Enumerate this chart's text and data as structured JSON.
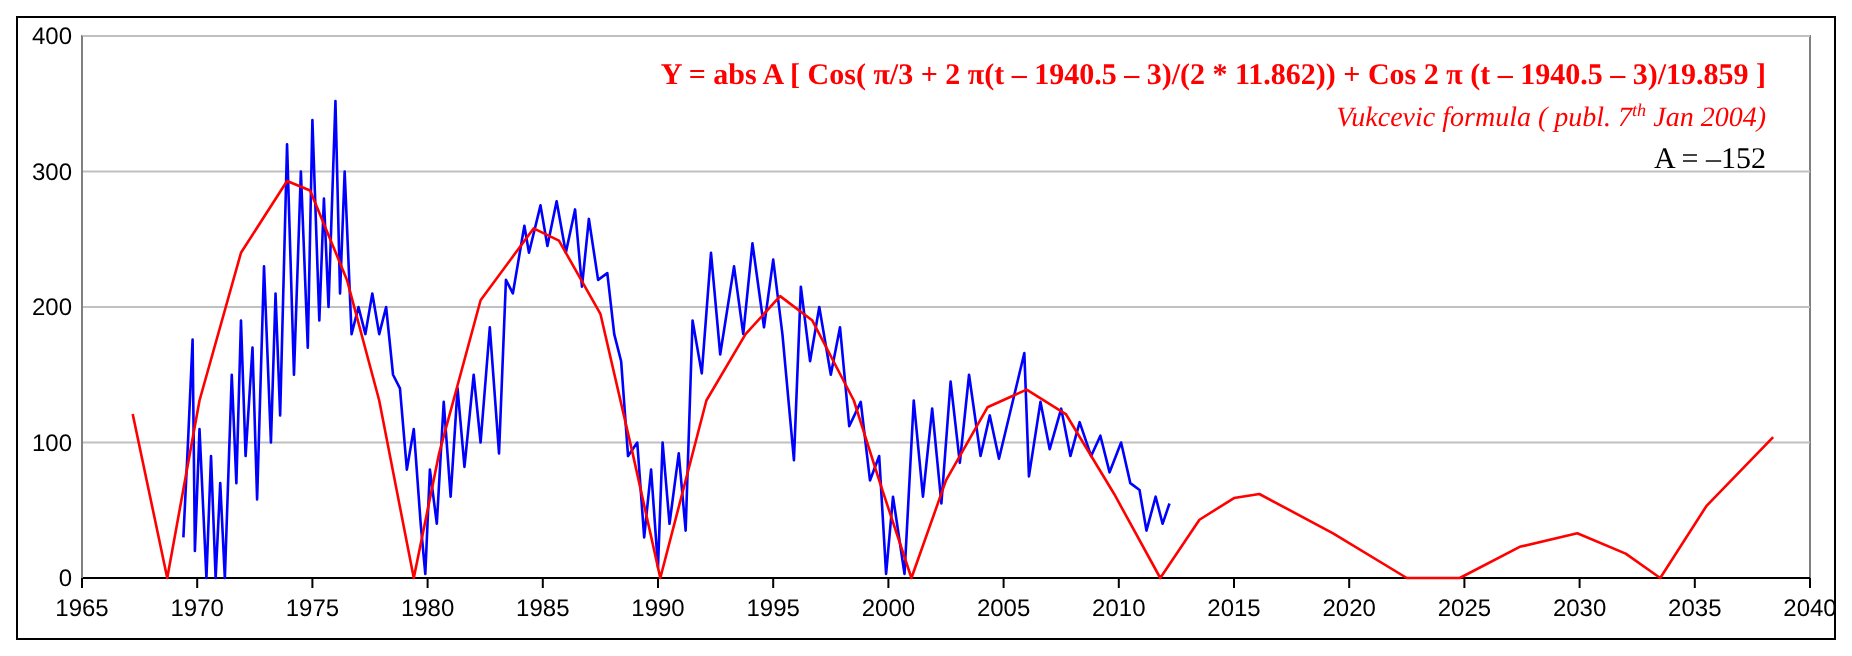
{
  "chart_data": {
    "type": "line",
    "xlim": [
      1965,
      2040
    ],
    "xticks": [
      1965,
      1970,
      1975,
      1980,
      1985,
      1990,
      1995,
      2000,
      2005,
      2010,
      2015,
      2020,
      2025,
      2030,
      2035,
      2040
    ],
    "ylim": [
      0,
      400
    ],
    "yticks": [
      0,
      100,
      200,
      300,
      400
    ],
    "grid": "y",
    "marker": "none",
    "line_style": "solid",
    "annotations": [
      "Y =  abs  A [ Cos( π/3 + 2 π(t – 1940.5 – 3)/(2 * 11.862)) + Cos 2 π (t – 1940.5 – 3)/19.859 ]",
      "Vukcevic formula ( publ. 7$^{th}$ Jan 2004)",
      "A = –152"
    ],
    "series": [
      {
        "color": "#0000ff",
        "x": [
          1969.4,
          1969.6,
          1969.8,
          1969.9,
          1970.1,
          1970.4,
          1970.6,
          1970.8,
          1971.0,
          1971.2,
          1971.5,
          1971.7,
          1971.9,
          1972.1,
          1972.4,
          1972.6,
          1972.9,
          1973.2,
          1973.4,
          1973.6,
          1973.9,
          1974.2,
          1974.5,
          1974.8,
          1975.0,
          1975.3,
          1975.5,
          1975.7,
          1976.0,
          1976.2,
          1976.4,
          1976.7,
          1977.0,
          1977.3,
          1977.6,
          1977.9,
          1978.2,
          1978.5,
          1978.8,
          1979.1,
          1979.4,
          1979.7,
          1979.9,
          1980.1,
          1980.4,
          1980.7,
          1981.0,
          1981.3,
          1981.6,
          1982.0,
          1982.3,
          1982.7,
          1983.1,
          1983.4,
          1983.7,
          1984.2,
          1984.4,
          1984.9,
          1985.2,
          1985.6,
          1986.0,
          1986.4,
          1986.7,
          1987.0,
          1987.4,
          1987.8,
          1988.1,
          1988.4,
          1988.7,
          1989.1,
          1989.4,
          1989.7,
          1990.0,
          1990.2,
          1990.5,
          1990.9,
          1991.2,
          1991.5,
          1991.9,
          1992.3,
          1992.7,
          1993.3,
          1993.7,
          1994.1,
          1994.6,
          1995.0,
          1995.4,
          1995.9,
          1996.2,
          1996.6,
          1997.0,
          1997.5,
          1997.9,
          1998.3,
          1998.8,
          1999.2,
          1999.6,
          1999.9,
          2000.2,
          2000.7,
          2001.1,
          2001.5,
          2001.9,
          2002.3,
          2002.7,
          2003.1,
          2003.5,
          2004.0,
          2004.4,
          2004.8,
          2005.9,
          2006.1,
          2006.6,
          2007.0,
          2007.5,
          2007.9,
          2008.3,
          2008.8,
          2009.2,
          2009.6,
          2010.1,
          2010.5,
          2010.9,
          2011.2,
          2011.6,
          2011.9,
          2012.2
        ],
        "values": [
          30,
          100,
          176,
          20,
          110,
          0,
          90,
          0,
          70,
          0,
          150,
          70,
          190,
          90,
          170,
          58,
          230,
          100,
          210,
          120,
          320,
          150,
          300,
          170,
          338,
          190,
          280,
          200,
          352,
          210,
          300,
          180,
          200,
          180,
          210,
          180,
          200,
          150,
          140,
          80,
          110,
          40,
          3,
          80,
          40,
          130,
          60,
          140,
          82,
          150,
          100,
          185,
          92,
          220,
          210,
          260,
          240,
          275,
          245,
          278,
          240,
          272,
          215,
          265,
          220,
          225,
          180,
          160,
          90,
          100,
          30,
          80,
          8,
          100,
          40,
          92,
          35,
          190,
          151,
          240,
          165,
          230,
          180,
          247,
          185,
          235,
          180,
          87,
          215,
          160,
          200,
          150,
          185,
          112,
          130,
          72,
          90,
          3,
          60,
          3,
          131,
          60,
          125,
          55,
          145,
          85,
          150,
          90,
          120,
          88,
          166,
          75,
          130,
          95,
          125,
          90,
          115,
          90,
          105,
          78,
          100,
          70,
          65,
          35,
          60,
          40,
          55
        ]
      },
      {
        "color": "#ff0000",
        "x": [
          1967.2,
          1968.7,
          1970.1,
          1971.9,
          1973.9,
          1974.9,
          1976.5,
          1977.9,
          1979.4,
          1980.5,
          1982.3,
          1984.6,
          1985.7,
          1987.5,
          1988.9,
          1990.1,
          1992.1,
          1993.8,
          1995.3,
          1996.7,
          1998.5,
          1999.6,
          2001.0,
          2002.5,
          2004.3,
          2006.0,
          2007.7,
          2009.8,
          2011.8,
          2013.5,
          2015.0,
          2016.1,
          2019.3,
          2022.5,
          2024.8,
          2027.4,
          2029.9,
          2032.0,
          2033.5,
          2035.5,
          2038.4
        ],
        "values": [
          121,
          0,
          131,
          240,
          293,
          286,
          220,
          131,
          0,
          92,
          205,
          258,
          249,
          195,
          92,
          0,
          131,
          180,
          208,
          190,
          131,
          72,
          0,
          72,
          126,
          139,
          121,
          62,
          0,
          43,
          59,
          62,
          33,
          0,
          0,
          23,
          33,
          18,
          0,
          53,
          104
        ]
      }
    ]
  }
}
